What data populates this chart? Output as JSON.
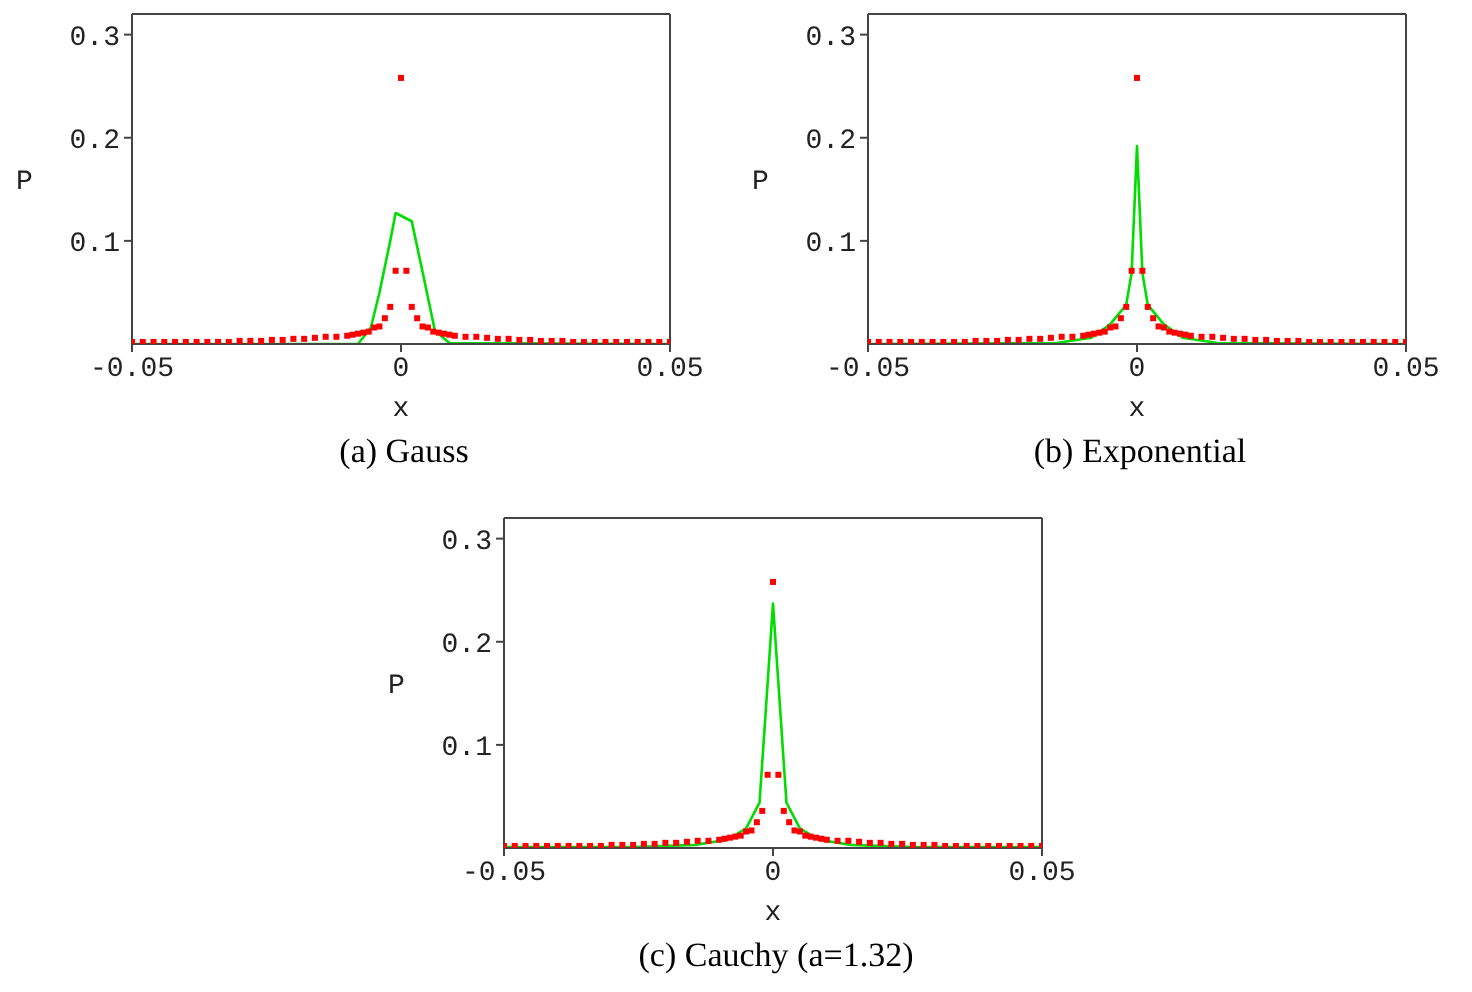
{
  "chart_data": [
    {
      "type": "scatter",
      "title": "(a) Gauss",
      "xlabel": "x",
      "ylabel": "P",
      "xlim": [
        -0.05,
        0.05
      ],
      "xticks": [
        -0.05,
        0,
        0.05
      ],
      "ylim": [
        0,
        0.32
      ],
      "yticks": [
        0.1,
        0.2,
        0.3
      ],
      "series": [
        {
          "marker": "square",
          "color": "#ff0000",
          "x": [
            -0.05,
            -0.048,
            -0.046,
            -0.044,
            -0.042,
            -0.04,
            -0.038,
            -0.036,
            -0.034,
            -0.032,
            -0.03,
            -0.028,
            -0.026,
            -0.024,
            -0.022,
            -0.02,
            -0.018,
            -0.016,
            -0.014,
            -0.012,
            -0.01,
            -0.009,
            -0.008,
            -0.007,
            -0.006,
            -0.005,
            -0.004,
            -0.003,
            -0.002,
            -0.001,
            0,
            0.001,
            0.002,
            0.003,
            0.004,
            0.005,
            0.006,
            0.007,
            0.008,
            0.009,
            0.01,
            0.012,
            0.014,
            0.016,
            0.018,
            0.02,
            0.022,
            0.024,
            0.026,
            0.028,
            0.03,
            0.032,
            0.034,
            0.036,
            0.038,
            0.04,
            0.042,
            0.044,
            0.046,
            0.048,
            0.05
          ],
          "values": [
            0.002,
            0.002,
            0.002,
            0.002,
            0.002,
            0.002,
            0.002,
            0.002,
            0.002,
            0.002,
            0.003,
            0.003,
            0.003,
            0.004,
            0.004,
            0.005,
            0.005,
            0.006,
            0.007,
            0.007,
            0.008,
            0.009,
            0.01,
            0.011,
            0.012,
            0.016,
            0.017,
            0.025,
            0.036,
            0.071,
            0.258,
            0.071,
            0.036,
            0.025,
            0.017,
            0.016,
            0.012,
            0.011,
            0.01,
            0.009,
            0.008,
            0.007,
            0.007,
            0.006,
            0.005,
            0.005,
            0.004,
            0.004,
            0.003,
            0.003,
            0.003,
            0.002,
            0.002,
            0.002,
            0.002,
            0.002,
            0.002,
            0.002,
            0.002,
            0.002,
            0.002
          ]
        },
        {
          "type": "line",
          "color": "#00dd00",
          "x": [
            -0.05,
            -0.008,
            -0.0056,
            -0.004,
            -0.002,
            -0.001,
            0.002,
            0.004,
            0.0063,
            0.009,
            0.05
          ],
          "values": [
            0,
            0,
            0.016,
            0.05,
            0.1,
            0.127,
            0.119,
            0.07,
            0.013,
            0.001,
            0
          ]
        }
      ]
    },
    {
      "type": "scatter",
      "title": "(b) Exponential",
      "xlabel": "x",
      "ylabel": "P",
      "xlim": [
        -0.05,
        0.05
      ],
      "xticks": [
        -0.05,
        0,
        0.05
      ],
      "ylim": [
        0,
        0.32
      ],
      "yticks": [
        0.1,
        0.2,
        0.3
      ],
      "series": [
        {
          "marker": "square",
          "color": "#ff0000",
          "x": [
            -0.05,
            -0.048,
            -0.046,
            -0.044,
            -0.042,
            -0.04,
            -0.038,
            -0.036,
            -0.034,
            -0.032,
            -0.03,
            -0.028,
            -0.026,
            -0.024,
            -0.022,
            -0.02,
            -0.018,
            -0.016,
            -0.014,
            -0.012,
            -0.01,
            -0.009,
            -0.008,
            -0.007,
            -0.006,
            -0.005,
            -0.004,
            -0.003,
            -0.002,
            -0.001,
            0,
            0.001,
            0.002,
            0.003,
            0.004,
            0.005,
            0.006,
            0.007,
            0.008,
            0.009,
            0.01,
            0.012,
            0.014,
            0.016,
            0.018,
            0.02,
            0.022,
            0.024,
            0.026,
            0.028,
            0.03,
            0.032,
            0.034,
            0.036,
            0.038,
            0.04,
            0.042,
            0.044,
            0.046,
            0.048,
            0.05
          ],
          "values": [
            0.002,
            0.002,
            0.002,
            0.002,
            0.002,
            0.002,
            0.002,
            0.002,
            0.002,
            0.002,
            0.003,
            0.003,
            0.003,
            0.004,
            0.004,
            0.005,
            0.005,
            0.006,
            0.007,
            0.007,
            0.008,
            0.009,
            0.01,
            0.011,
            0.012,
            0.016,
            0.017,
            0.025,
            0.036,
            0.071,
            0.258,
            0.071,
            0.036,
            0.025,
            0.017,
            0.016,
            0.012,
            0.011,
            0.01,
            0.009,
            0.008,
            0.007,
            0.007,
            0.006,
            0.005,
            0.005,
            0.004,
            0.004,
            0.003,
            0.003,
            0.003,
            0.002,
            0.002,
            0.002,
            0.002,
            0.002,
            0.002,
            0.002,
            0.002,
            0.002,
            0.002
          ]
        },
        {
          "type": "line",
          "color": "#00dd00",
          "x": [
            -0.05,
            -0.015,
            -0.0085,
            -0.005,
            -0.002,
            -0.001,
            0,
            0.001,
            0.002,
            0.005,
            0.0085,
            0.015,
            0.05
          ],
          "values": [
            0,
            0.001,
            0.006,
            0.019,
            0.038,
            0.069,
            0.192,
            0.069,
            0.038,
            0.019,
            0.006,
            0.001,
            0
          ]
        }
      ]
    },
    {
      "type": "scatter",
      "title": "(c) Cauchy (a=1.32)",
      "xlabel": "x",
      "ylabel": "P",
      "xlim": [
        -0.05,
        0.05
      ],
      "xticks": [
        -0.05,
        0,
        0.05
      ],
      "ylim": [
        0,
        0.32
      ],
      "yticks": [
        0.1,
        0.2,
        0.3
      ],
      "series": [
        {
          "marker": "square",
          "color": "#ff0000",
          "x": [
            -0.05,
            -0.048,
            -0.046,
            -0.044,
            -0.042,
            -0.04,
            -0.038,
            -0.036,
            -0.034,
            -0.032,
            -0.03,
            -0.028,
            -0.026,
            -0.024,
            -0.022,
            -0.02,
            -0.018,
            -0.016,
            -0.014,
            -0.012,
            -0.01,
            -0.009,
            -0.008,
            -0.007,
            -0.006,
            -0.005,
            -0.004,
            -0.003,
            -0.002,
            -0.001,
            0,
            0.001,
            0.002,
            0.003,
            0.004,
            0.005,
            0.006,
            0.007,
            0.008,
            0.009,
            0.01,
            0.012,
            0.014,
            0.016,
            0.018,
            0.02,
            0.022,
            0.024,
            0.026,
            0.028,
            0.03,
            0.032,
            0.034,
            0.036,
            0.038,
            0.04,
            0.042,
            0.044,
            0.046,
            0.048,
            0.05
          ],
          "values": [
            0.002,
            0.002,
            0.002,
            0.002,
            0.002,
            0.002,
            0.002,
            0.002,
            0.002,
            0.002,
            0.003,
            0.003,
            0.003,
            0.004,
            0.004,
            0.005,
            0.005,
            0.006,
            0.007,
            0.007,
            0.008,
            0.009,
            0.01,
            0.011,
            0.012,
            0.016,
            0.017,
            0.025,
            0.036,
            0.071,
            0.258,
            0.071,
            0.036,
            0.025,
            0.017,
            0.016,
            0.012,
            0.011,
            0.01,
            0.009,
            0.008,
            0.007,
            0.007,
            0.006,
            0.005,
            0.005,
            0.004,
            0.004,
            0.003,
            0.003,
            0.003,
            0.002,
            0.002,
            0.002,
            0.002,
            0.002,
            0.002,
            0.002,
            0.002,
            0.002,
            0.002
          ]
        },
        {
          "type": "line",
          "color": "#00dd00",
          "x": [
            -0.05,
            -0.026,
            -0.0145,
            -0.0085,
            -0.005,
            -0.0025,
            0,
            0.0025,
            0.005,
            0.0085,
            0.0145,
            0.026,
            0.05
          ],
          "values": [
            0.001,
            0.001,
            0.003,
            0.008,
            0.019,
            0.044,
            0.237,
            0.044,
            0.019,
            0.008,
            0.003,
            0.001,
            0.001
          ]
        }
      ]
    }
  ]
}
